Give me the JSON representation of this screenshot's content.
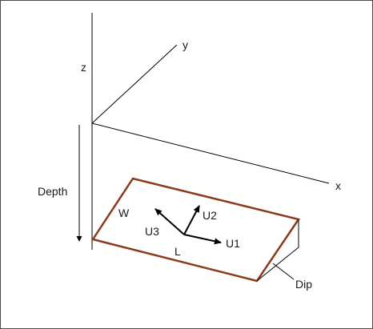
{
  "axes": {
    "x": "x",
    "y": "y",
    "z": "z"
  },
  "depth_label": "Depth",
  "fault": {
    "width_label": "W",
    "length_label": "L",
    "dip_label": "Dip",
    "outline_color": "#8b3a1a"
  },
  "slip_vectors": [
    "U1",
    "U2",
    "U3"
  ]
}
